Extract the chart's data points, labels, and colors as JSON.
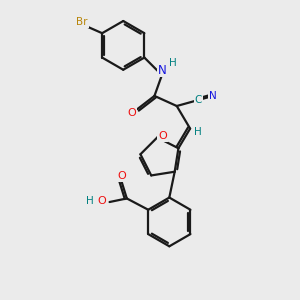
{
  "background_color": "#ebebeb",
  "bond_color": "#1a1a1a",
  "bond_width": 1.6,
  "atom_colors": {
    "Br": "#b8860b",
    "N": "#1414e0",
    "O": "#ee1111",
    "C_cyan": "#008080",
    "H": "#008080",
    "default": "#1a1a1a"
  },
  "figsize": [
    3.0,
    3.0
  ],
  "dpi": 100
}
